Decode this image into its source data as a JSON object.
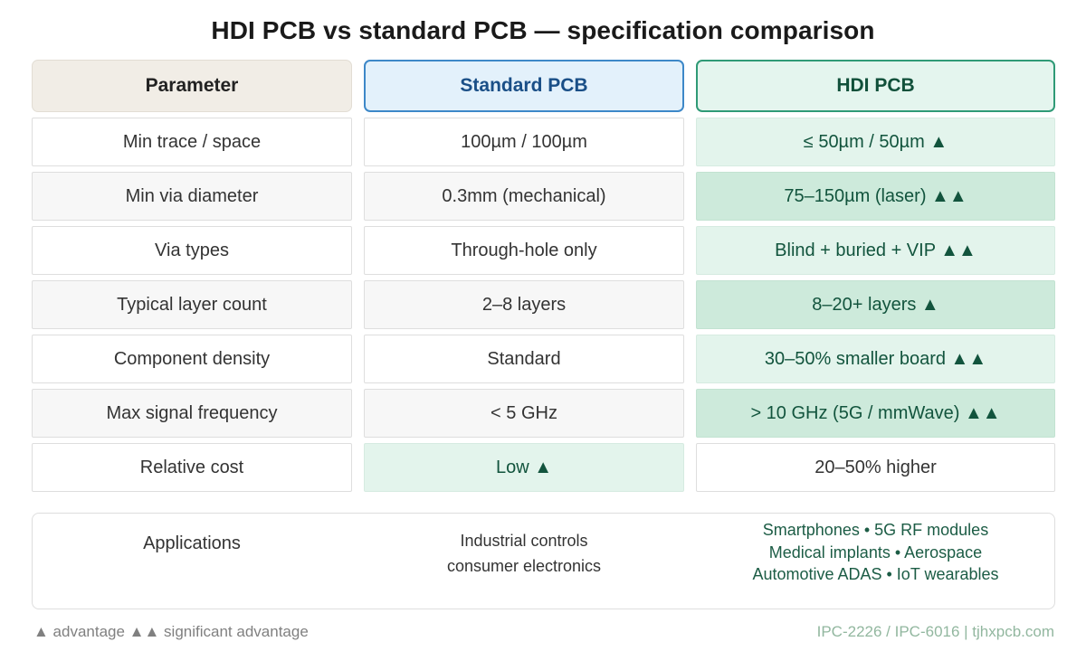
{
  "title": "HDI PCB vs standard PCB — specification comparison",
  "headers": {
    "parameter": "Parameter",
    "standard": "Standard PCB",
    "hdi": "HDI PCB"
  },
  "rows": [
    {
      "parameter": "Min trace / space",
      "standard": "100µm / 100µm",
      "hdi": "≤ 50µm / 50µm ▲",
      "advantage": "hdi",
      "level": 1
    },
    {
      "parameter": "Min via diameter",
      "standard": "0.3mm (mechanical)",
      "hdi": "75–150µm (laser) ▲▲",
      "advantage": "hdi",
      "level": 2
    },
    {
      "parameter": "Via types",
      "standard": "Through-hole only",
      "hdi": "Blind + buried + VIP ▲▲",
      "advantage": "hdi",
      "level": 2
    },
    {
      "parameter": "Typical layer count",
      "standard": "2–8 layers",
      "hdi": "8–20+ layers ▲",
      "advantage": "hdi",
      "level": 1
    },
    {
      "parameter": "Component density",
      "standard": "Standard",
      "hdi": "30–50% smaller board ▲▲",
      "advantage": "hdi",
      "level": 2
    },
    {
      "parameter": "Max signal frequency",
      "standard": "< 5 GHz",
      "hdi": "> 10 GHz (5G / mmWave) ▲▲",
      "advantage": "hdi",
      "level": 2
    },
    {
      "parameter": "Relative cost",
      "standard": "Low ▲",
      "hdi": "20–50% higher",
      "advantage": "standard",
      "level": 1
    }
  ],
  "applications": {
    "label": "Applications",
    "standard_lines": [
      "Industrial controls",
      "consumer electronics"
    ],
    "hdi_lines": [
      "Smartphones • 5G RF modules",
      "Medical implants • Aerospace",
      "Automotive ADAS • IoT wearables"
    ]
  },
  "footer": {
    "legend": "▲ advantage  ▲▲ significant advantage",
    "source": "IPC-2226 / IPC-6016 | tjhxpcb.com"
  },
  "colors": {
    "standard_accent": "#3d88c8",
    "hdi_accent": "#2f9a76",
    "advantage_fill": "#e3f4ec",
    "advantage_fill_strong": "#cdeadb",
    "footer_source": "#92b79f"
  }
}
